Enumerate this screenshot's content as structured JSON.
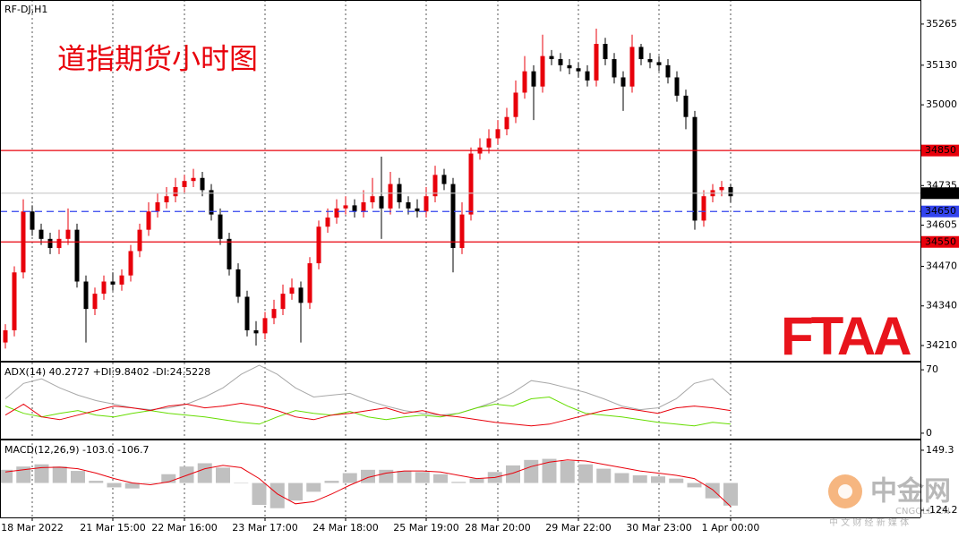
{
  "chart_data": [
    {
      "type": "candlestick",
      "title": "RF-DJ,H1",
      "categories": [
        null,
        null,
        null,
        "18 Mar 2022",
        null,
        null,
        null,
        null,
        null,
        null,
        null,
        null,
        "21 Mar 15:00",
        null,
        null,
        null,
        null,
        null,
        null,
        null,
        "22 Mar 16:00",
        null,
        null,
        null,
        null,
        null,
        null,
        null,
        null,
        "23 Mar 17:00",
        null,
        null,
        null,
        null,
        null,
        null,
        null,
        null,
        "24 Mar 18:00",
        null,
        null,
        null,
        null,
        null,
        null,
        null,
        null,
        "25 Mar 19:00",
        null,
        null,
        null,
        null,
        null,
        null,
        null,
        "28 Mar 20:00",
        null,
        null,
        null,
        null,
        null,
        null,
        null,
        null,
        "29 Mar 22:00",
        null,
        null,
        null,
        null,
        null,
        null,
        null,
        null,
        "30 Mar 23:00",
        null,
        null,
        null,
        null,
        null,
        null,
        null,
        "1 Apr 00:00"
      ],
      "open": [
        34220,
        34260,
        34450,
        34650,
        34590,
        34560,
        34530,
        34560,
        34590,
        34420,
        34330,
        34380,
        34420,
        34410,
        34440,
        34520,
        34590,
        34650,
        34680,
        34700,
        34730,
        34750,
        34760,
        34720,
        34640,
        34560,
        34460,
        34370,
        34260,
        34250,
        34300,
        34330,
        34380,
        34400,
        34350,
        34480,
        34600,
        34630,
        34660,
        34670,
        34650,
        34680,
        34700,
        34660,
        34740,
        34680,
        34660,
        34650,
        34700,
        34770,
        34740,
        34530,
        34640,
        34840,
        34860,
        34890,
        34920,
        34960,
        35040,
        35110,
        35060,
        35160,
        35150,
        35130,
        35120,
        35110,
        35080,
        35200,
        35150,
        35090,
        35060,
        35190,
        35150,
        35140,
        35130,
        35090,
        35030,
        34960,
        34620,
        34700,
        34720,
        34730
      ],
      "high": [
        34280,
        34470,
        34690,
        34670,
        34610,
        34580,
        34590,
        34660,
        34610,
        34440,
        34400,
        34440,
        34450,
        34460,
        34540,
        34610,
        34680,
        34710,
        34730,
        34760,
        34770,
        34790,
        34780,
        34740,
        34660,
        34580,
        34480,
        34390,
        34290,
        34320,
        34360,
        34410,
        34430,
        34420,
        34500,
        34620,
        34660,
        34690,
        34700,
        34690,
        34720,
        34760,
        34830,
        34780,
        34760,
        34700,
        34690,
        34730,
        34800,
        34790,
        34760,
        34680,
        34860,
        34890,
        34920,
        34950,
        34990,
        35080,
        35160,
        35130,
        35230,
        35180,
        35170,
        35150,
        35140,
        35130,
        35250,
        35220,
        35170,
        35110,
        35230,
        35200,
        35170,
        35160,
        35150,
        35110,
        35050,
        34980,
        34720,
        34740,
        34750,
        34740
      ],
      "low": [
        34200,
        34240,
        34430,
        34570,
        34540,
        34510,
        34510,
        34540,
        34400,
        34220,
        34310,
        34360,
        34390,
        34390,
        34420,
        34500,
        34570,
        34630,
        34660,
        34680,
        34710,
        34730,
        34700,
        34620,
        34540,
        34440,
        34350,
        34240,
        34210,
        34230,
        34280,
        34310,
        34360,
        34220,
        34330,
        34460,
        34580,
        34610,
        34640,
        34630,
        34630,
        34660,
        34560,
        34640,
        34660,
        34640,
        34630,
        34630,
        34680,
        34720,
        34450,
        34510,
        34620,
        34820,
        34840,
        34870,
        34900,
        34940,
        35020,
        34950,
        35040,
        35130,
        35110,
        35100,
        35090,
        35060,
        35060,
        35130,
        35070,
        34980,
        35040,
        35130,
        35120,
        35110,
        35070,
        35010,
        34920,
        34590,
        34600,
        34680,
        34700,
        34680
      ],
      "close": [
        34260,
        34450,
        34650,
        34590,
        34560,
        34530,
        34560,
        34590,
        34420,
        34330,
        34380,
        34420,
        34410,
        34440,
        34520,
        34590,
        34650,
        34680,
        34700,
        34730,
        34750,
        34760,
        34720,
        34640,
        34560,
        34460,
        34370,
        34260,
        34250,
        34300,
        34330,
        34380,
        34400,
        34350,
        34480,
        34600,
        34630,
        34660,
        34670,
        34650,
        34680,
        34700,
        34660,
        34740,
        34680,
        34660,
        34650,
        34700,
        34770,
        34740,
        34530,
        34640,
        34840,
        34860,
        34890,
        34920,
        34960,
        35040,
        35110,
        35060,
        35160,
        35150,
        35130,
        35120,
        35110,
        35080,
        35200,
        35150,
        35090,
        35060,
        35190,
        35150,
        35140,
        35130,
        35090,
        35030,
        34960,
        34620,
        34700,
        34720,
        34730,
        34700
      ],
      "up_color": "#e8000b",
      "down_color": "#000000",
      "ylim": [
        34160,
        35344
      ],
      "yticks": [
        34210,
        34340,
        34470,
        34605,
        34735,
        35000,
        35130,
        35265
      ],
      "hlines": [
        {
          "value": 34850,
          "color": "#e8000b",
          "label_color": "#e8000b",
          "dashed": false
        },
        {
          "value": 34710,
          "color": "#c8c8c8",
          "label_color": "#000000",
          "dashed": false
        },
        {
          "value": 34650,
          "color": "#3344ee",
          "label_color": "#3344ee",
          "dashed": true
        },
        {
          "value": 34550,
          "color": "#e8000b",
          "label_color": "#e8000b",
          "dashed": false
        }
      ],
      "grid": true
    },
    {
      "type": "line",
      "title": "ADX(14) 40.2727 +DI:9.8402 -DI:24.5228",
      "ylim": [
        -6,
        78
      ],
      "yticks": [
        0,
        70
      ],
      "series": [
        {
          "color": "#a8a8a8",
          "values": [
            38,
            55,
            60,
            50,
            42,
            36,
            32,
            28,
            26,
            28,
            32,
            40,
            50,
            65,
            75,
            65,
            50,
            40,
            42,
            44,
            36,
            30,
            25,
            22,
            20,
            22,
            28,
            35,
            45,
            58,
            55,
            50,
            45,
            38,
            30,
            26,
            28,
            38,
            55,
            60,
            42
          ]
        },
        {
          "color": "#66dd00",
          "values": [
            30,
            22,
            18,
            22,
            25,
            20,
            18,
            22,
            25,
            22,
            20,
            18,
            15,
            12,
            10,
            18,
            25,
            22,
            20,
            24,
            18,
            15,
            18,
            20,
            18,
            22,
            28,
            32,
            30,
            38,
            40,
            30,
            22,
            20,
            18,
            15,
            12,
            10,
            8,
            12,
            10
          ]
        },
        {
          "color": "#e8000b",
          "values": [
            20,
            32,
            18,
            15,
            20,
            25,
            30,
            28,
            25,
            30,
            32,
            28,
            30,
            33,
            30,
            25,
            18,
            15,
            20,
            22,
            25,
            28,
            22,
            25,
            20,
            18,
            15,
            12,
            10,
            8,
            10,
            15,
            20,
            25,
            28,
            25,
            22,
            28,
            30,
            28,
            25
          ]
        }
      ]
    },
    {
      "type": "bar",
      "title": "MACD(12,26,9) -103.0 -106.7",
      "ylim": [
        -157,
        194
      ],
      "yticks": [
        -124.2,
        149.3
      ],
      "series": [
        {
          "style": "histogram",
          "color": "#c0c0c0",
          "values": [
            60,
            75,
            85,
            75,
            55,
            10,
            -20,
            -25,
            0,
            40,
            75,
            90,
            70,
            0,
            -100,
            -115,
            -80,
            -40,
            10,
            45,
            60,
            60,
            55,
            50,
            40,
            5,
            20,
            50,
            80,
            105,
            110,
            100,
            85,
            65,
            45,
            35,
            30,
            20,
            -20,
            -70,
            -103
          ]
        },
        {
          "style": "line",
          "color": "#e8000b",
          "values": [
            50,
            60,
            70,
            72,
            65,
            45,
            20,
            0,
            -8,
            5,
            35,
            65,
            80,
            70,
            20,
            -50,
            -95,
            -85,
            -50,
            -10,
            25,
            45,
            55,
            55,
            50,
            35,
            20,
            25,
            45,
            75,
            95,
            105,
            100,
            85,
            70,
            55,
            45,
            35,
            20,
            -30,
            -106.7
          ]
        }
      ]
    }
  ],
  "overlay": {
    "caption": "道指期货小时图",
    "logo": "FTAA",
    "watermark": "中金网",
    "watermark_site": "CNGOLD.CN",
    "watermark_tagline": "中 文 财 经 新 媒 体"
  }
}
